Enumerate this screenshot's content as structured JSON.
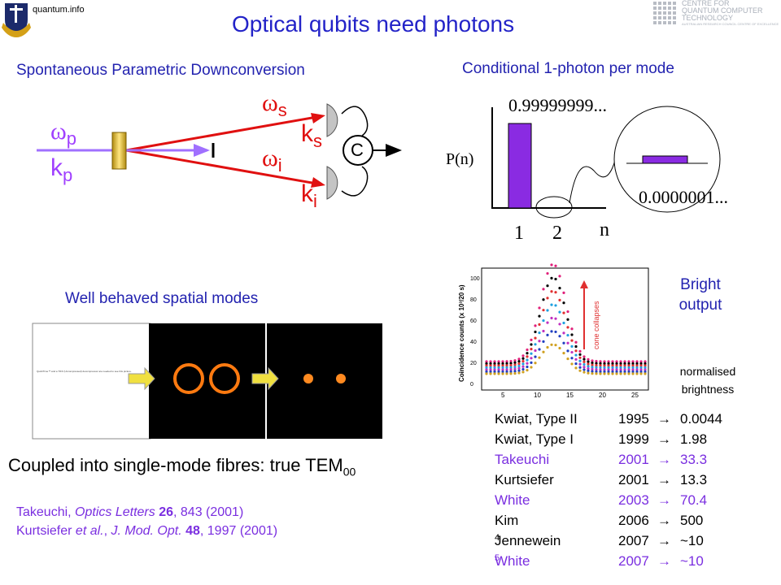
{
  "header": {
    "logo_text": "quantum.info",
    "title": "Optical qubits need photons",
    "centre_logo": [
      "CENTRE FOR",
      "QUANTUM COMPUTER",
      "TECHNOLOGY",
      "AUSTRALIAN RESEARCH COUNCIL CENTRE OF EXCELLENCE"
    ]
  },
  "spdc": {
    "heading": "Spontaneous Parametric Downconversion",
    "omega": "ω",
    "k": "k",
    "pump": "p",
    "signal": "s",
    "idler": "i",
    "coincidence": "C"
  },
  "conditional": {
    "heading": "Conditional 1-photon per mode",
    "y_label": "P(n)",
    "high": "0.99999999...",
    "low": "0.0000001...",
    "x_labels": [
      "1",
      "2"
    ],
    "x_title": "n"
  },
  "spatial": {
    "heading": "Well behaved spatial modes",
    "placeholder": "QuickTime™ and a TIFF (Uncompressed) decompressor are needed to see this picture.",
    "caption": "Coupled into single-mode fibres: true TEM",
    "caption_sub": "00"
  },
  "plot": {
    "y_label": "Coincidence counts (x 10³/20 s)",
    "annotation": "cone collapses",
    "yticks": [
      "0",
      "20",
      "40",
      "60",
      "80",
      "100"
    ],
    "xticks": [
      "5",
      "10",
      "15",
      "20",
      "25"
    ]
  },
  "brightness": {
    "heading": "Bright output",
    "column": "normalised brightness",
    "arrow": "→",
    "rows": [
      {
        "name": "Kwiat, Type II",
        "year": "1995",
        "value": "0.0044",
        "color": "#000000"
      },
      {
        "name": "Kwiat, Type I",
        "year": "1999",
        "value": "1.98",
        "color": "#000000"
      },
      {
        "name": "Takeuchi",
        "year": "2001",
        "value": "33.3",
        "color": "#7a2ee0"
      },
      {
        "name": "Kurtsiefer",
        "year": "2001",
        "value": "13.3",
        "color": "#000000"
      },
      {
        "name": "White",
        "year": "2003",
        "value": "70.4",
        "color": "#7a2ee0"
      },
      {
        "name": "Kim",
        "year": "2006",
        "value": "500",
        "color": "#000000"
      },
      {
        "name": "Jennewein",
        "year": "2007",
        "value": "~10",
        "exp": "4",
        "color": "#000000"
      },
      {
        "name": "White",
        "year": "2007",
        "value": "~10",
        "exp": "5",
        "color": "#7a2ee0"
      }
    ]
  },
  "references": [
    [
      "Takeuchi, ",
      "Optics Letters",
      " ",
      "26",
      ", 843 (2001)"
    ],
    [
      "Kurtsiefer ",
      "et al.",
      ", ",
      "J. Mod. Opt.",
      " ",
      "48",
      ", 1997 (2001)"
    ]
  ]
}
